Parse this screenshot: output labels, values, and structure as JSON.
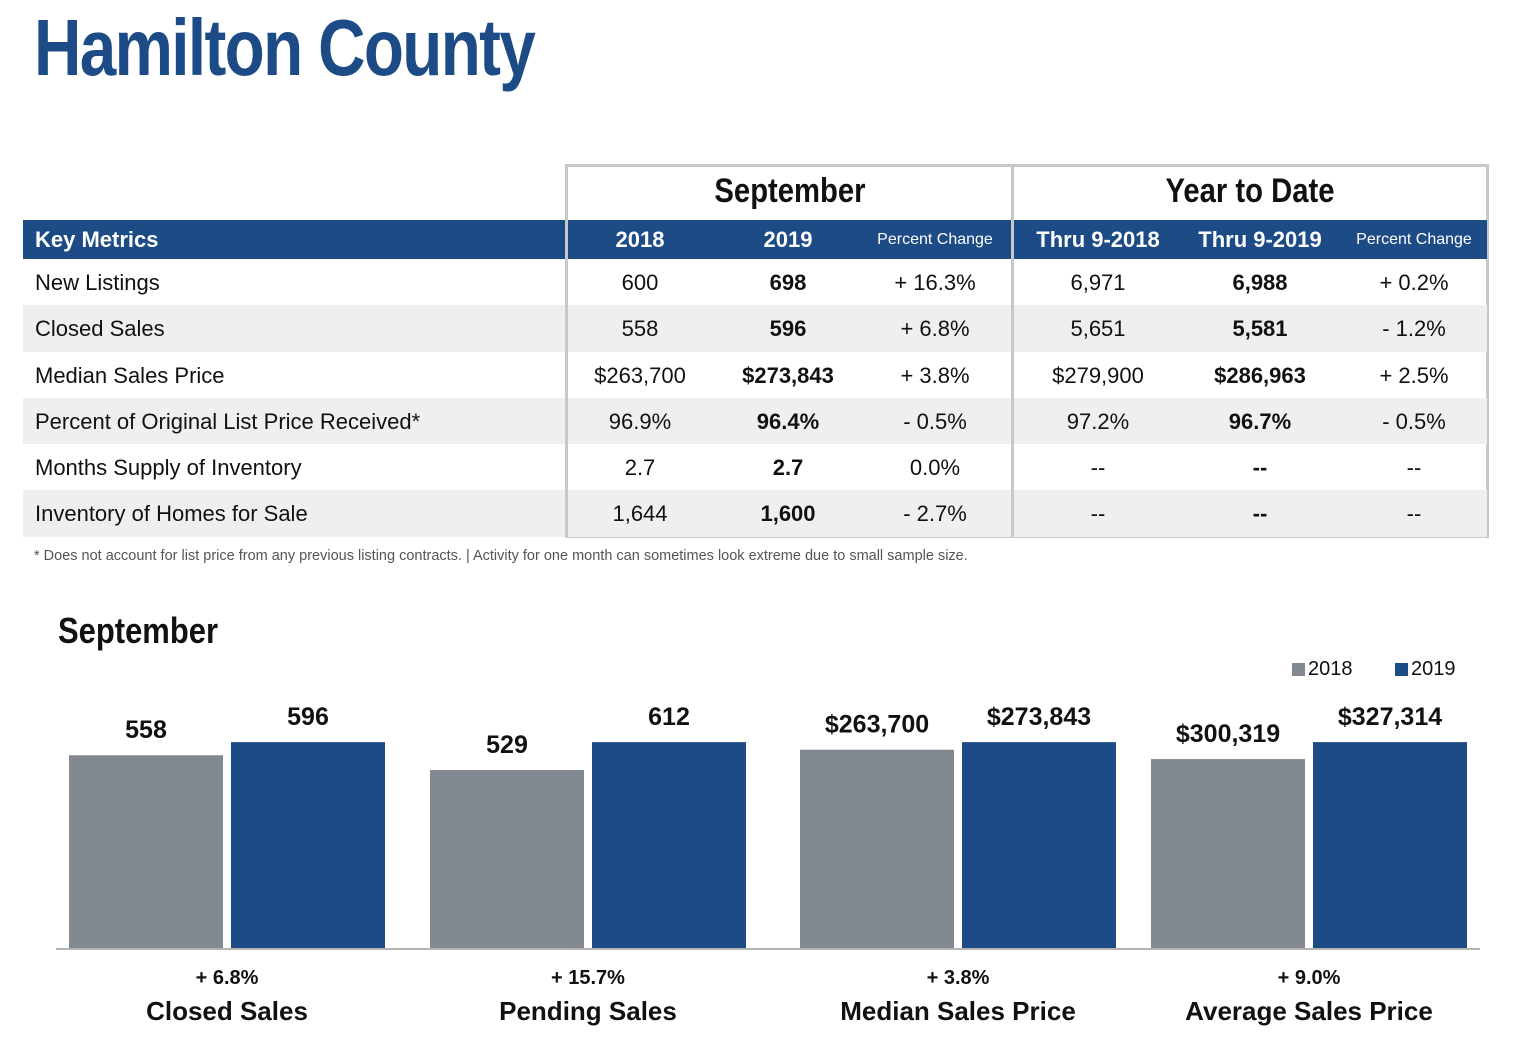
{
  "title": "Hamilton County",
  "table": {
    "group_headings": {
      "month": "September",
      "ytd": "Year to Date"
    },
    "columns": {
      "metric": "Key Metrics",
      "m2018": "2018",
      "m2019": "2019",
      "mchange": "Percent Change",
      "y2018": "Thru 9-2018",
      "y2019": "Thru 9-2019",
      "ychange": "Percent Change"
    },
    "rows": [
      {
        "metric": "New Listings",
        "m2018": "600",
        "m2019": "698",
        "mchange": "+ 16.3%",
        "y2018": "6,971",
        "y2019": "6,988",
        "ychange": "+ 0.2%"
      },
      {
        "metric": "Closed Sales",
        "m2018": "558",
        "m2019": "596",
        "mchange": "+ 6.8%",
        "y2018": "5,651",
        "y2019": "5,581",
        "ychange": "- 1.2%"
      },
      {
        "metric": "Median Sales Price",
        "m2018": "$263,700",
        "m2019": "$273,843",
        "mchange": "+ 3.8%",
        "y2018": "$279,900",
        "y2019": "$286,963",
        "ychange": "+ 2.5%"
      },
      {
        "metric": "Percent of Original List Price Received*",
        "m2018": "96.9%",
        "m2019": "96.4%",
        "mchange": "- 0.5%",
        "y2018": "97.2%",
        "y2019": "96.7%",
        "ychange": "- 0.5%"
      },
      {
        "metric": "Months Supply of Inventory",
        "m2018": "2.7",
        "m2019": "2.7",
        "mchange": "0.0%",
        "y2018": "--",
        "y2019": "--",
        "ychange": "--"
      },
      {
        "metric": "Inventory of Homes for Sale",
        "m2018": "1,644",
        "m2019": "1,600",
        "mchange": "- 2.7%",
        "y2018": "--",
        "y2019": "--",
        "ychange": "--"
      }
    ],
    "footnote": "* Does not account for list price from any previous listing contracts.  |  Activity for one month can sometimes look extreme due to small sample size."
  },
  "chart_heading": "September",
  "colors": {
    "brand": "#1d4b86",
    "y2018": "#818890",
    "y2019": "#1d4b86",
    "border": "#c8c8c8",
    "row_shade": "#efefef"
  },
  "chart_data": {
    "type": "bar",
    "title": "September",
    "legend": {
      "position": "top-right",
      "entries": [
        "2018",
        "2019"
      ]
    },
    "grid": false,
    "series": [
      {
        "name": "2018",
        "color": "#818890"
      },
      {
        "name": "2019",
        "color": "#1d4b86"
      }
    ],
    "groups": [
      {
        "category": "Closed Sales",
        "change": "+ 6.8%",
        "values": [
          558,
          596
        ],
        "labels": [
          "558",
          "596"
        ]
      },
      {
        "category": "Pending Sales",
        "change": "+ 15.7%",
        "values": [
          529,
          612
        ],
        "labels": [
          "529",
          "612"
        ]
      },
      {
        "category": "Median Sales Price",
        "change": "+ 3.8%",
        "values": [
          263700,
          273843
        ],
        "labels": [
          "$263,700",
          "$273,843"
        ]
      },
      {
        "category": "Average Sales Price",
        "change": "+ 9.0%",
        "values": [
          300319,
          327314
        ],
        "labels": [
          "$300,319",
          "$327,314"
        ]
      }
    ]
  }
}
